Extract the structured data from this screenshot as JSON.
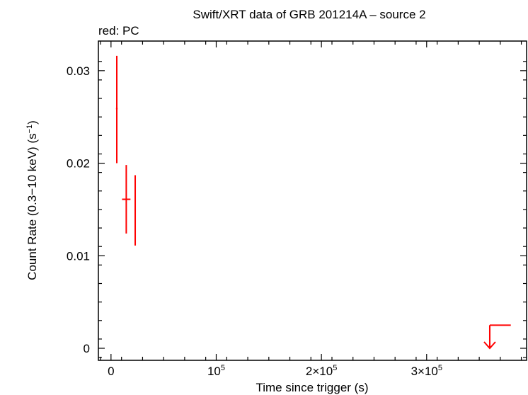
{
  "chart_data": {
    "type": "scatter",
    "title": "Swift/XRT data of GRB 201214A – source 2",
    "subtitle": "red: PC",
    "xlabel": "Time since trigger (s)",
    "ylabel": "Count Rate (0.3−10 keV) (s",
    "ylabel_sup": "−1",
    "ylabel_end": ")",
    "xlim": [
      -12000,
      395000
    ],
    "ylim": [
      -0.0013,
      0.0332
    ],
    "x_ticks": [
      {
        "value": 0,
        "label": "0",
        "sup": ""
      },
      {
        "value": 100000,
        "label": "10",
        "sup": "5"
      },
      {
        "value": 200000,
        "label": "2×10",
        "sup": "5"
      },
      {
        "value": 300000,
        "label": "3×10",
        "sup": "5"
      }
    ],
    "y_ticks": [
      {
        "value": 0,
        "label": "0"
      },
      {
        "value": 0.01,
        "label": "0.01"
      },
      {
        "value": 0.02,
        "label": "0.02"
      },
      {
        "value": 0.03,
        "label": "0.03"
      }
    ],
    "series": [
      {
        "color": "#ff0000",
        "points": [
          {
            "x": 5500,
            "xerr_lo": 800,
            "xerr_hi": 800,
            "y": 0.0259,
            "yerr_lo": 0.0059,
            "yerr_hi": 0.0057
          },
          {
            "x": 14500,
            "xerr_lo": 4000,
            "xerr_hi": 4000,
            "y": 0.0161,
            "yerr_lo": 0.0037,
            "yerr_hi": 0.0037
          },
          {
            "x": 23000,
            "xerr_lo": 600,
            "xerr_hi": 600,
            "y": 0.0149,
            "yerr_lo": 0.0038,
            "yerr_hi": 0.0038
          }
        ],
        "upper_limits": [
          {
            "x": 360000,
            "x_hi": 380000,
            "y": 0.0025
          }
        ]
      }
    ]
  }
}
